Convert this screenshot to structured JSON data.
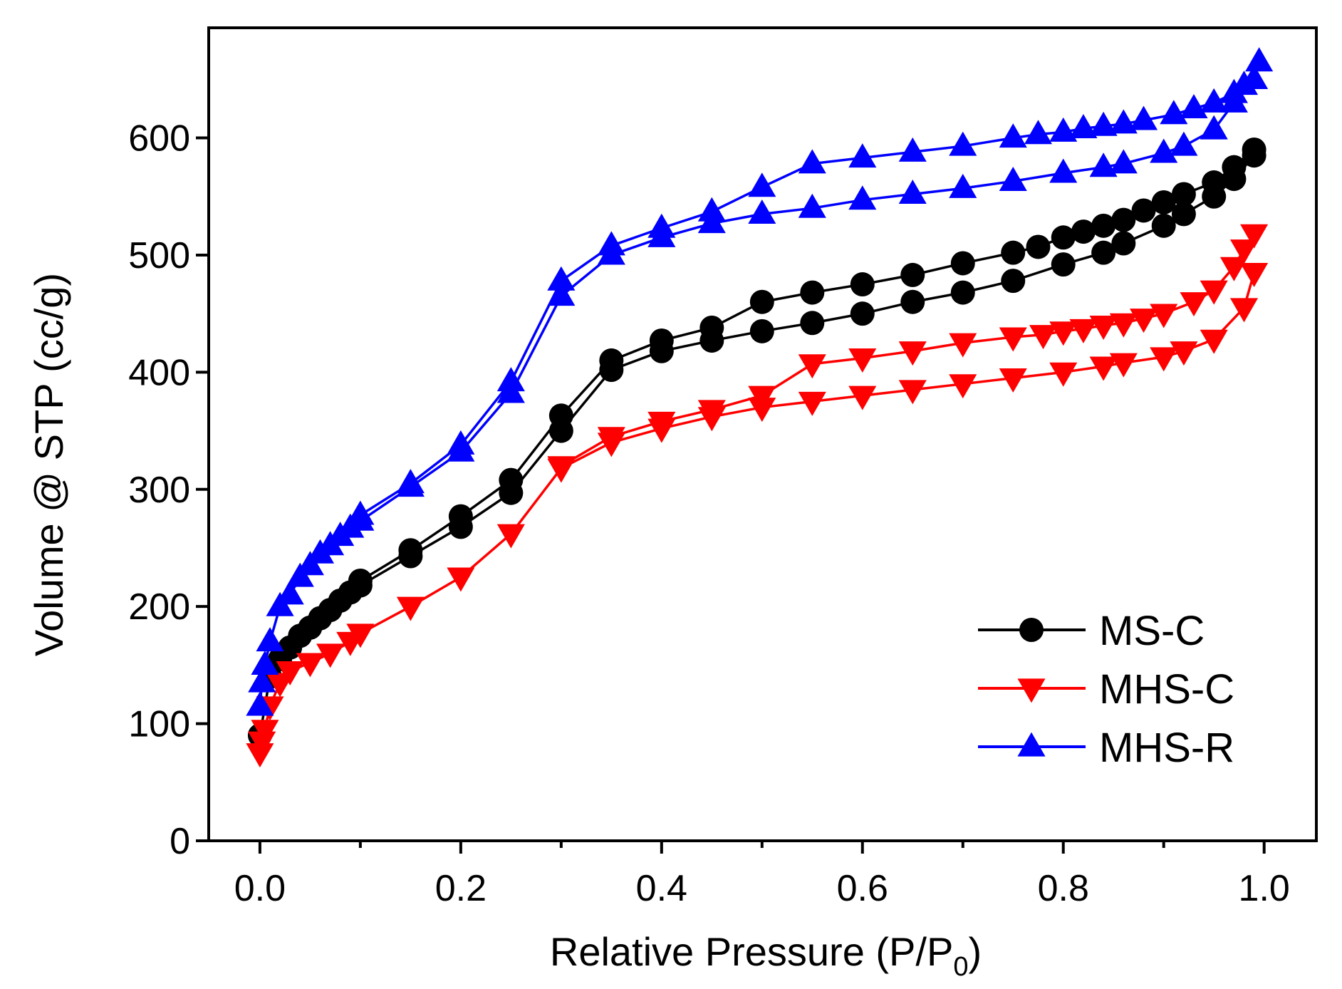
{
  "chart_data": {
    "type": "line",
    "title": "",
    "xlabel": "Relative Pressure  (P/P",
    "xlabel_sub": "0",
    "xlabel_close": ")",
    "ylabel": "Volume @ STP  (cc/g)",
    "xlim": [
      -0.051,
      1.052
    ],
    "ylim": [
      0,
      694
    ],
    "xticks": [
      0.0,
      0.2,
      0.4,
      0.6,
      0.8,
      1.0
    ],
    "xtick_labels": [
      "0.0",
      "0.2",
      "0.4",
      "0.6",
      "0.8",
      "1.0"
    ],
    "xminor": [
      0.1,
      0.3,
      0.5,
      0.7,
      0.9
    ],
    "yticks": [
      0,
      100,
      200,
      300,
      400,
      500,
      600
    ],
    "ytick_labels": [
      "0",
      "100",
      "200",
      "300",
      "400",
      "500",
      "600"
    ],
    "grid": false,
    "legend_position": "bottom-right",
    "series": [
      {
        "name": "MS-C",
        "color": "#000000",
        "marker": "circle",
        "adsorption": {
          "x": [
            0.0,
            0.01,
            0.02,
            0.03,
            0.04,
            0.05,
            0.06,
            0.07,
            0.08,
            0.09,
            0.1,
            0.15,
            0.2,
            0.25,
            0.3,
            0.35,
            0.4,
            0.45,
            0.5,
            0.55,
            0.6,
            0.65,
            0.7,
            0.75,
            0.8,
            0.84,
            0.86,
            0.9,
            0.92,
            0.95,
            0.97,
            0.99
          ],
          "y": [
            90,
            140,
            155,
            165,
            175,
            182,
            190,
            197,
            205,
            212,
            218,
            243,
            268,
            297,
            350,
            402,
            418,
            427,
            435,
            442,
            450,
            460,
            468,
            478,
            492,
            502,
            510,
            525,
            535,
            550,
            565,
            585
          ]
        },
        "desorption": {
          "x": [
            0.99,
            0.97,
            0.95,
            0.92,
            0.9,
            0.88,
            0.86,
            0.84,
            0.82,
            0.8,
            0.775,
            0.75,
            0.7,
            0.65,
            0.6,
            0.55,
            0.5,
            0.45,
            0.4,
            0.35,
            0.3,
            0.25,
            0.2,
            0.15,
            0.1
          ],
          "y": [
            590,
            575,
            562,
            552,
            545,
            538,
            530,
            525,
            520,
            515,
            507,
            502,
            493,
            483,
            475,
            468,
            460,
            438,
            427,
            410,
            363,
            308,
            277,
            248,
            222
          ]
        }
      },
      {
        "name": "MHS-C",
        "color": "#ff0000",
        "marker": "triangle-down",
        "adsorption": {
          "x": [
            0.0,
            0.002,
            0.005,
            0.01,
            0.02,
            0.03,
            0.05,
            0.07,
            0.09,
            0.1,
            0.15,
            0.2,
            0.25,
            0.3,
            0.35,
            0.4,
            0.45,
            0.5,
            0.55,
            0.6,
            0.65,
            0.7,
            0.75,
            0.8,
            0.84,
            0.86,
            0.9,
            0.92,
            0.95,
            0.98,
            0.99
          ],
          "y": [
            75,
            85,
            95,
            115,
            135,
            145,
            152,
            160,
            170,
            177,
            200,
            225,
            262,
            318,
            340,
            352,
            362,
            370,
            375,
            380,
            385,
            390,
            395,
            400,
            405,
            408,
            413,
            418,
            428,
            455,
            485
          ]
        },
        "desorption": {
          "x": [
            0.99,
            0.98,
            0.97,
            0.95,
            0.93,
            0.9,
            0.88,
            0.86,
            0.84,
            0.82,
            0.8,
            0.78,
            0.75,
            0.7,
            0.65,
            0.6,
            0.55,
            0.5,
            0.45,
            0.4,
            0.35,
            0.3
          ],
          "y": [
            518,
            505,
            490,
            470,
            460,
            450,
            446,
            442,
            440,
            437,
            435,
            432,
            430,
            425,
            418,
            412,
            407,
            380,
            368,
            358,
            345,
            320
          ]
        }
      },
      {
        "name": "MHS-R",
        "color": "#0000ff",
        "marker": "triangle-up",
        "adsorption": {
          "x": [
            0.0,
            0.002,
            0.005,
            0.01,
            0.02,
            0.03,
            0.04,
            0.05,
            0.06,
            0.07,
            0.08,
            0.09,
            0.1,
            0.15,
            0.2,
            0.25,
            0.3,
            0.35,
            0.4,
            0.45,
            0.5,
            0.55,
            0.6,
            0.65,
            0.7,
            0.75,
            0.8,
            0.84,
            0.86,
            0.9,
            0.92,
            0.95,
            0.97,
            0.99
          ],
          "y": [
            115,
            135,
            150,
            170,
            200,
            210,
            225,
            235,
            245,
            252,
            260,
            267,
            273,
            302,
            332,
            382,
            465,
            500,
            515,
            527,
            535,
            540,
            547,
            552,
            557,
            563,
            570,
            575,
            578,
            587,
            593,
            607,
            630,
            650
          ]
        },
        "desorption": {
          "x": [
            0.995,
            0.98,
            0.97,
            0.95,
            0.93,
            0.91,
            0.88,
            0.86,
            0.84,
            0.82,
            0.8,
            0.775,
            0.75,
            0.7,
            0.65,
            0.6,
            0.55,
            0.5,
            0.45,
            0.4,
            0.35,
            0.3,
            0.25,
            0.2,
            0.15,
            0.1
          ],
          "y": [
            665,
            645,
            638,
            630,
            625,
            620,
            615,
            612,
            610,
            608,
            605,
            603,
            600,
            593,
            588,
            583,
            578,
            558,
            537,
            523,
            508,
            478,
            392,
            338,
            305,
            278
          ]
        }
      }
    ]
  }
}
